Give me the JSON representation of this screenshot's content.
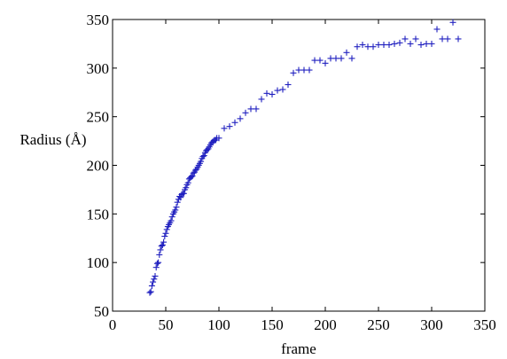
{
  "chart_data": {
    "type": "scatter",
    "title": "",
    "xlabel": "frame",
    "ylabel": "Radius (Å)",
    "xlim": [
      0,
      350
    ],
    "ylim": [
      50,
      350
    ],
    "x_ticks": [
      "0",
      "50",
      "100",
      "150",
      "200",
      "250",
      "300",
      "350"
    ],
    "y_ticks": [
      "50",
      "100",
      "150",
      "200",
      "250",
      "300",
      "350"
    ],
    "grid": false,
    "marker": "+",
    "marker_color": "#1f1fbf",
    "series": [
      {
        "points": [
          [
            35,
            69
          ],
          [
            36,
            70
          ],
          [
            37,
            76
          ],
          [
            38,
            80
          ],
          [
            39,
            83
          ],
          [
            40,
            86
          ],
          [
            41,
            95
          ],
          [
            42,
            99
          ],
          [
            43,
            100
          ],
          [
            44,
            108
          ],
          [
            45,
            113
          ],
          [
            46,
            117
          ],
          [
            47,
            118
          ],
          [
            48,
            121
          ],
          [
            49,
            127
          ],
          [
            50,
            130
          ],
          [
            51,
            134
          ],
          [
            52,
            137
          ],
          [
            53,
            139
          ],
          [
            54,
            141
          ],
          [
            55,
            143
          ],
          [
            56,
            147
          ],
          [
            57,
            150
          ],
          [
            58,
            152
          ],
          [
            59,
            154
          ],
          [
            60,
            157
          ],
          [
            61,
            162
          ],
          [
            62,
            165
          ],
          [
            63,
            168
          ],
          [
            64,
            167
          ],
          [
            65,
            170
          ],
          [
            66,
            171
          ],
          [
            67,
            171
          ],
          [
            68,
            175
          ],
          [
            69,
            177
          ],
          [
            70,
            180
          ],
          [
            71,
            182
          ],
          [
            72,
            186
          ],
          [
            73,
            187
          ],
          [
            74,
            188
          ],
          [
            75,
            189
          ],
          [
            76,
            192
          ],
          [
            77,
            193
          ],
          [
            78,
            195
          ],
          [
            79,
            196
          ],
          [
            80,
            198
          ],
          [
            81,
            200
          ],
          [
            82,
            202
          ],
          [
            83,
            204
          ],
          [
            84,
            207
          ],
          [
            85,
            209
          ],
          [
            86,
            210
          ],
          [
            87,
            213
          ],
          [
            88,
            215
          ],
          [
            89,
            216
          ],
          [
            90,
            217
          ],
          [
            91,
            219
          ],
          [
            92,
            221
          ],
          [
            93,
            223
          ],
          [
            94,
            224
          ],
          [
            95,
            225
          ],
          [
            96,
            226
          ],
          [
            97,
            226
          ],
          [
            98,
            228
          ],
          [
            100,
            228
          ],
          [
            105,
            238
          ],
          [
            110,
            240
          ],
          [
            115,
            244
          ],
          [
            120,
            248
          ],
          [
            125,
            254
          ],
          [
            130,
            258
          ],
          [
            135,
            258
          ],
          [
            140,
            268
          ],
          [
            145,
            274
          ],
          [
            150,
            273
          ],
          [
            155,
            277
          ],
          [
            160,
            278
          ],
          [
            165,
            283
          ],
          [
            170,
            295
          ],
          [
            175,
            298
          ],
          [
            180,
            298
          ],
          [
            185,
            298
          ],
          [
            190,
            308
          ],
          [
            195,
            308
          ],
          [
            200,
            305
          ],
          [
            205,
            310
          ],
          [
            210,
            310
          ],
          [
            215,
            310
          ],
          [
            220,
            316
          ],
          [
            225,
            310
          ],
          [
            230,
            322
          ],
          [
            235,
            324
          ],
          [
            240,
            322
          ],
          [
            245,
            322
          ],
          [
            250,
            324
          ],
          [
            255,
            324
          ],
          [
            260,
            324
          ],
          [
            265,
            325
          ],
          [
            270,
            326
          ],
          [
            275,
            330
          ],
          [
            280,
            325
          ],
          [
            285,
            330
          ],
          [
            290,
            324
          ],
          [
            295,
            325
          ],
          [
            300,
            325
          ],
          [
            305,
            340
          ],
          [
            310,
            330
          ],
          [
            315,
            330
          ],
          [
            320,
            347
          ],
          [
            325,
            330
          ]
        ]
      }
    ]
  }
}
